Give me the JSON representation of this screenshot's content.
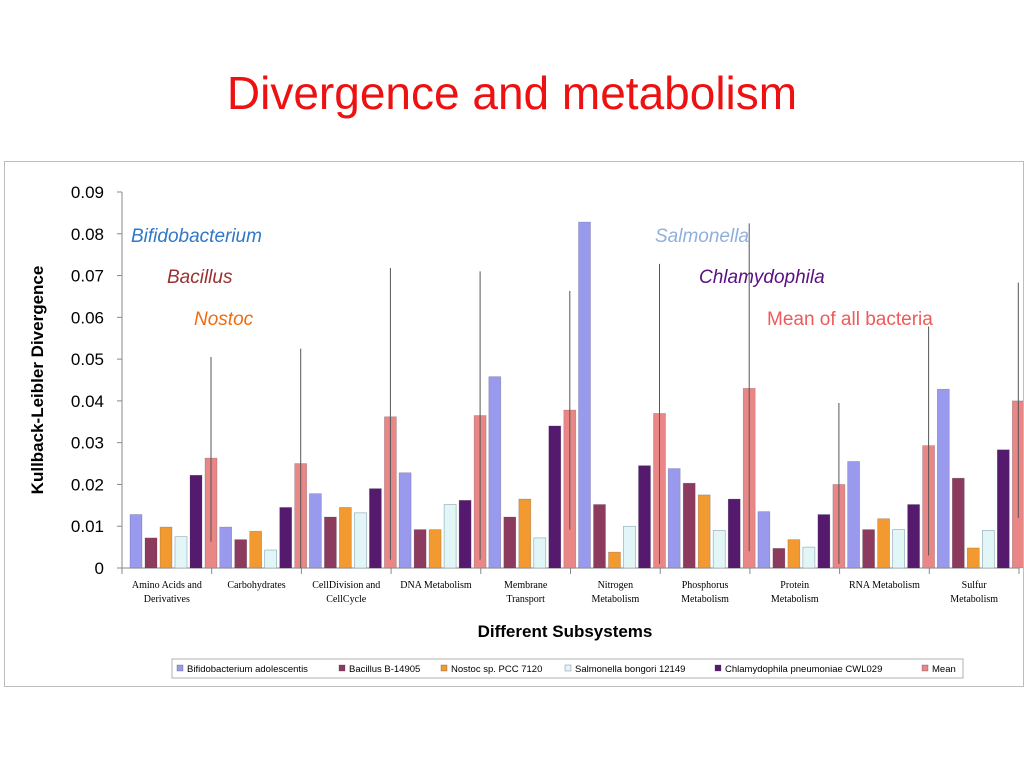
{
  "slide": {
    "title": "Divergence and metabolism"
  },
  "colors": {
    "title": "#ee1111",
    "series": [
      "#9999ee",
      "#8c3a5e",
      "#f29a30",
      "#e2f6f8",
      "#551a6e",
      "#e98686"
    ],
    "annotations": [
      "#2f78c8",
      "#9a3030",
      "#ee6c10",
      "#8fb0dc",
      "#5a1080",
      "#ee5a5a"
    ]
  },
  "annotations": [
    {
      "text": "Bifidobacterium",
      "italic": true
    },
    {
      "text": "Bacillus",
      "italic": true
    },
    {
      "text": "Nostoc",
      "italic": true
    },
    {
      "text": "Salmonella",
      "italic": true
    },
    {
      "text": "Chlamydophila",
      "italic": true
    },
    {
      "text": "Mean of all bacteria",
      "italic": false
    }
  ],
  "chart_data": {
    "type": "bar",
    "xlabel": "Different Subsystems",
    "ylabel": "Kullback-Leibler Divergence",
    "ylim": [
      0,
      0.09
    ],
    "yticks": [
      "0",
      "0.01",
      "0.02",
      "0.03",
      "0.04",
      "0.05",
      "0.06",
      "0.07",
      "0.08",
      "0.09"
    ],
    "legend_position": "bottom",
    "categories": [
      [
        "Amino Acids and",
        "Derivatives"
      ],
      [
        "Carbohydrates"
      ],
      [
        "CellDivision and",
        "CellCycle"
      ],
      [
        "DNA Metabolism"
      ],
      [
        "Membrane",
        "Transport"
      ],
      [
        "Nitrogen",
        "Metabolism"
      ],
      [
        "Phosphorus",
        "Metabolism"
      ],
      [
        "Protein",
        "Metabolism"
      ],
      [
        "RNA Metabolism"
      ],
      [
        "Sulfur",
        "Metabolism"
      ]
    ],
    "series": [
      {
        "name": "Bifidobacterium adolescentis",
        "values": [
          0.0128,
          0.0098,
          0.0178,
          0.0228,
          0.0458,
          0.0828,
          0.0238,
          0.0135,
          0.0255,
          0.0428
        ]
      },
      {
        "name": "Bacillus B-14905",
        "values": [
          0.0072,
          0.0068,
          0.0122,
          0.0092,
          0.0122,
          0.0152,
          0.0203,
          0.0047,
          0.0092,
          0.0215
        ]
      },
      {
        "name": "Nostoc sp. PCC 7120",
        "values": [
          0.0098,
          0.0088,
          0.0145,
          0.0092,
          0.0165,
          0.0038,
          0.0175,
          0.0068,
          0.0118,
          0.0048
        ]
      },
      {
        "name": "Salmonella bongori 12149",
        "values": [
          0.0075,
          0.0043,
          0.0132,
          0.0152,
          0.0072,
          0.01,
          0.009,
          0.005,
          0.0092,
          0.009
        ]
      },
      {
        "name": "Chlamydophila pneumoniae CWL029",
        "values": [
          0.0222,
          0.0145,
          0.019,
          0.0162,
          0.034,
          0.0245,
          0.0165,
          0.0128,
          0.0152,
          0.0283
        ]
      },
      {
        "name": "Mean",
        "values": [
          0.0263,
          0.025,
          0.0362,
          0.0365,
          0.0378,
          0.037,
          0.043,
          0.02,
          0.0293,
          0.04
        ],
        "error_low": [
          0.0063,
          0.0,
          0.002,
          0.002,
          0.0092,
          0.001,
          0.004,
          0.001,
          0.003,
          0.012
        ],
        "error_high": [
          0.0505,
          0.0525,
          0.0718,
          0.071,
          0.0663,
          0.0728,
          0.0825,
          0.0395,
          0.0578,
          0.0683
        ]
      }
    ]
  }
}
